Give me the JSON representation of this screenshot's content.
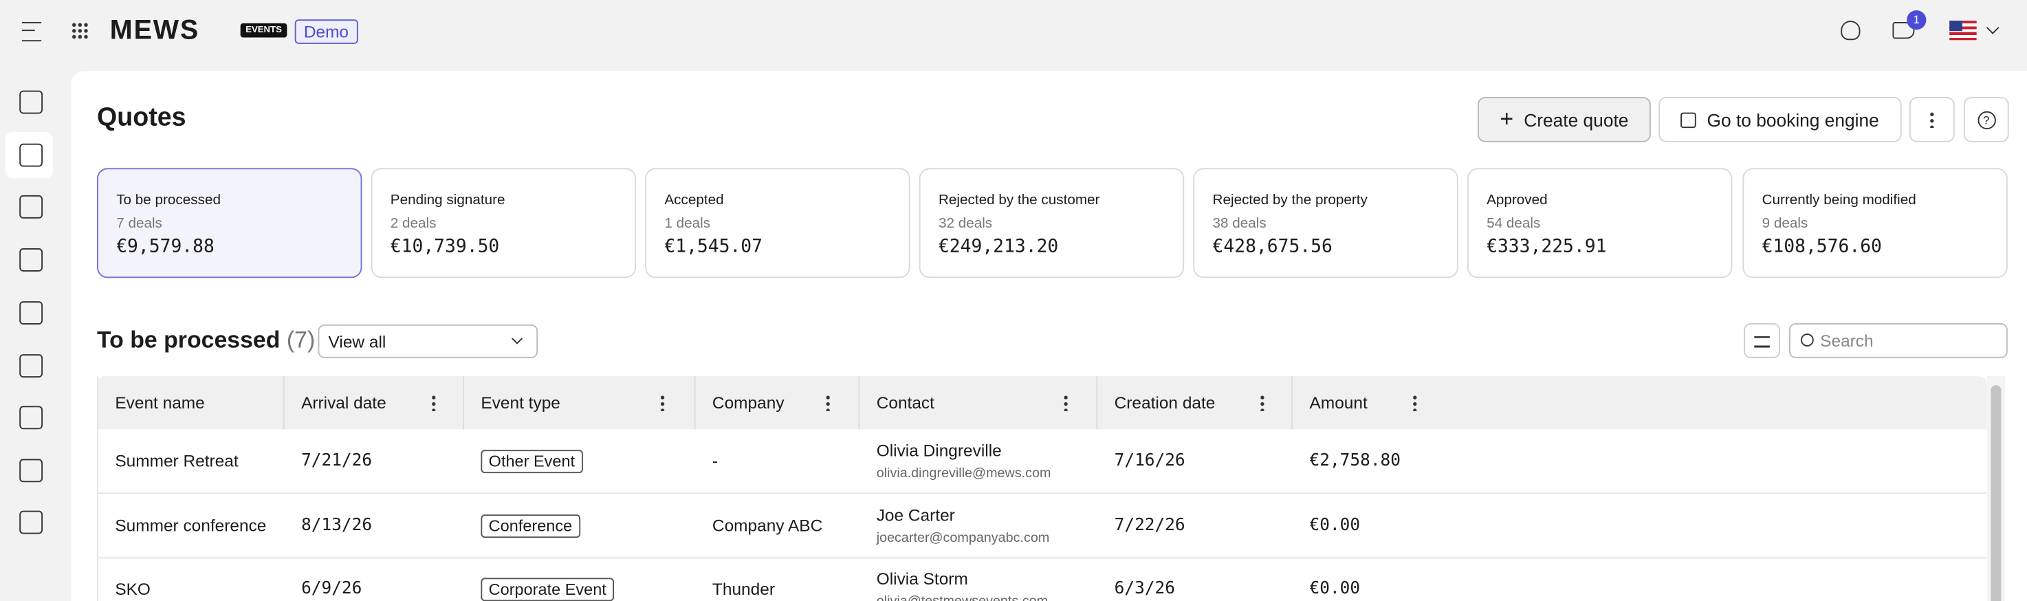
{
  "header": {
    "logo": "MEWS",
    "badge": "EVENTS",
    "env": "Demo",
    "notifications": "1"
  },
  "page": {
    "title": "Quotes",
    "actions": [
      "Create quote",
      "Go to booking engine"
    ]
  },
  "cards": [
    {
      "label": "To be processed",
      "deals": "7 deals",
      "amount": "€9,579.88"
    },
    {
      "label": "Pending signature",
      "deals": "2 deals",
      "amount": "€10,739.50"
    },
    {
      "label": "Accepted",
      "deals": "1 deals",
      "amount": "€1,545.07"
    },
    {
      "label": "Rejected by the customer",
      "deals": "32 deals",
      "amount": "€249,213.20"
    },
    {
      "label": "Rejected by the property",
      "deals": "38 deals",
      "amount": "€428,675.56"
    },
    {
      "label": "Approved",
      "deals": "54 deals",
      "amount": "€333,225.91"
    },
    {
      "label": "Currently being modified",
      "deals": "9 deals",
      "amount": "€108,576.60"
    }
  ],
  "section": {
    "title": "To be processed",
    "count": "(7)",
    "filter": "View all",
    "search": "Search"
  },
  "table": {
    "columns": [
      "Event name",
      "Arrival date",
      "Event type",
      "Company",
      "Contact",
      "Creation date",
      "Amount"
    ],
    "rows": [
      [
        "Summer Retreat",
        "7/21/26",
        "Other Event",
        "-",
        {
          "name": "Olivia Dingreville",
          "email": "olivia.dingreville@mews.com"
        },
        "7/16/26",
        "€2,758.80"
      ],
      [
        "Summer conference",
        "8/13/26",
        "Conference",
        "Company ABC",
        {
          "name": "Joe Carter",
          "email": "joecarter@companyabc.com"
        },
        "7/22/26",
        "€0.00"
      ],
      [
        "SKO",
        "6/9/26",
        "Corporate Event",
        "Thunder",
        {
          "name": "Olivia Storm",
          "email": "olivia@testmewsevents.com"
        },
        "6/3/26",
        "€0.00"
      ]
    ]
  }
}
